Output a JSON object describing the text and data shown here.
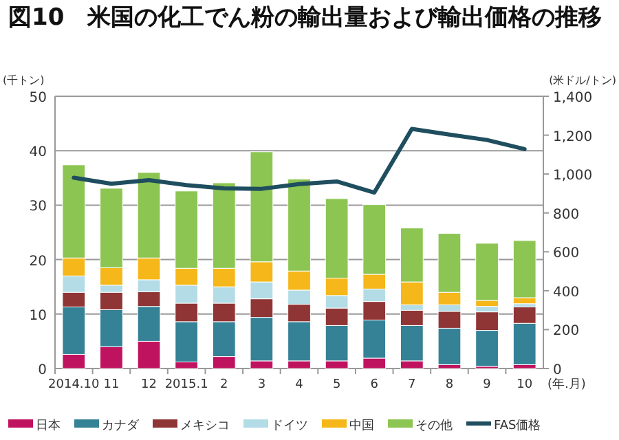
{
  "chart_data": {
    "type": "bar",
    "stacked": true,
    "title": "図10　米国の化工でん粉の輸出量および輸出価格の推移",
    "ylabel": "(千トン)",
    "y2label": "(米ドル/トン)",
    "xlabel": "(年.月)",
    "categories": [
      "2014.10",
      "11",
      "12",
      "2015.1",
      "2",
      "3",
      "4",
      "5",
      "6",
      "7",
      "8",
      "9",
      "10"
    ],
    "series": [
      {
        "name": "日本",
        "color": "#c0135f",
        "values": [
          2.6,
          4.0,
          5.0,
          1.2,
          2.2,
          1.4,
          1.4,
          1.4,
          1.9,
          1.4,
          0.7,
          0.4,
          0.7
        ]
      },
      {
        "name": "カナダ",
        "color": "#358196",
        "values": [
          8.7,
          6.8,
          6.4,
          7.4,
          6.4,
          8.0,
          7.2,
          6.5,
          7.0,
          6.5,
          6.7,
          6.6,
          7.6
        ]
      },
      {
        "name": "メキシコ",
        "color": "#8f3535",
        "values": [
          2.7,
          3.2,
          2.7,
          3.4,
          3.4,
          3.4,
          3.2,
          3.2,
          3.4,
          2.8,
          3.1,
          3.4,
          3.0
        ]
      },
      {
        "name": "ドイツ",
        "color": "#b3dce6",
        "values": [
          3.0,
          1.3,
          2.2,
          3.3,
          3.0,
          3.1,
          2.6,
          2.3,
          2.3,
          1.0,
          1.2,
          1.0,
          0.6
        ]
      },
      {
        "name": "中国",
        "color": "#f5b719",
        "values": [
          3.3,
          3.2,
          4.0,
          3.1,
          3.4,
          3.7,
          3.5,
          3.2,
          2.7,
          4.2,
          2.3,
          1.1,
          1.1
        ]
      },
      {
        "name": "その他",
        "color": "#8cc552",
        "values": [
          17.1,
          14.6,
          15.7,
          14.2,
          15.7,
          20.2,
          16.9,
          14.6,
          12.8,
          9.9,
          10.8,
          10.5,
          10.5
        ]
      },
      {
        "name": "FAS価格",
        "type": "line",
        "axis": "y2",
        "color": "#1f4e5f",
        "values": [
          981,
          950,
          969,
          943,
          926,
          924,
          948,
          962,
          905,
          1232,
          1203,
          1175,
          1128
        ]
      }
    ],
    "ylim": [
      0,
      50
    ],
    "yticks": [
      0,
      10,
      20,
      30,
      40,
      50
    ],
    "y2lim": [
      0,
      1400
    ],
    "y2ticks": [
      0,
      200,
      400,
      600,
      800,
      {
        "value": 1000,
        "label": "1,000"
      },
      {
        "value": 1200,
        "label": "1,200"
      },
      {
        "value": 1400,
        "label": "1,400"
      }
    ],
    "grid": "y",
    "legend": "bottom"
  }
}
